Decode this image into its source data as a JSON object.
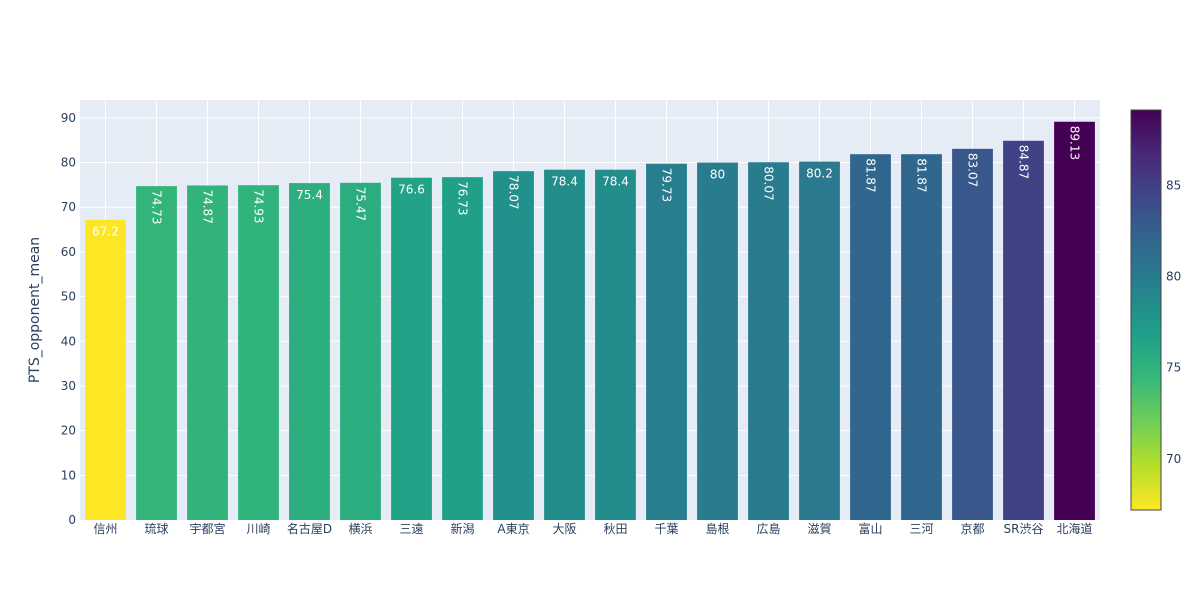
{
  "chart_data": {
    "type": "bar",
    "ylabel": "PTS_opponent_mean",
    "ylim": [
      0,
      94
    ],
    "yticks": [
      0,
      10,
      20,
      30,
      40,
      50,
      60,
      70,
      80,
      90
    ],
    "categories": [
      "信州",
      "琉球",
      "宇都宮",
      "川崎",
      "名古屋D",
      "横浜",
      "三遠",
      "新潟",
      "A東京",
      "大阪",
      "秋田",
      "千葉",
      "島根",
      "広島",
      "滋賀",
      "富山",
      "三河",
      "京都",
      "SR渋谷",
      "北海道"
    ],
    "values": [
      67.2,
      74.73,
      74.87,
      74.93,
      75.4,
      75.47,
      76.6,
      76.73,
      78.07,
      78.4,
      78.4,
      79.73,
      80,
      80.07,
      80.2,
      81.87,
      81.87,
      83.07,
      84.87,
      89.13
    ],
    "labels": [
      "67.2",
      "74.73",
      "74.87",
      "74.93",
      "75.4",
      "75.47",
      "76.6",
      "76.73",
      "78.07",
      "78.4",
      "78.4",
      "79.73",
      "80",
      "80.07",
      "80.2",
      "81.87",
      "81.87",
      "83.07",
      "84.87",
      "89.13"
    ],
    "colorscale": "viridis-reversed",
    "colorbar": {
      "range": [
        67.2,
        89.13
      ],
      "ticks": [
        70,
        75,
        80,
        85
      ]
    },
    "plot_background": "#e5ecf6",
    "grid": true
  }
}
